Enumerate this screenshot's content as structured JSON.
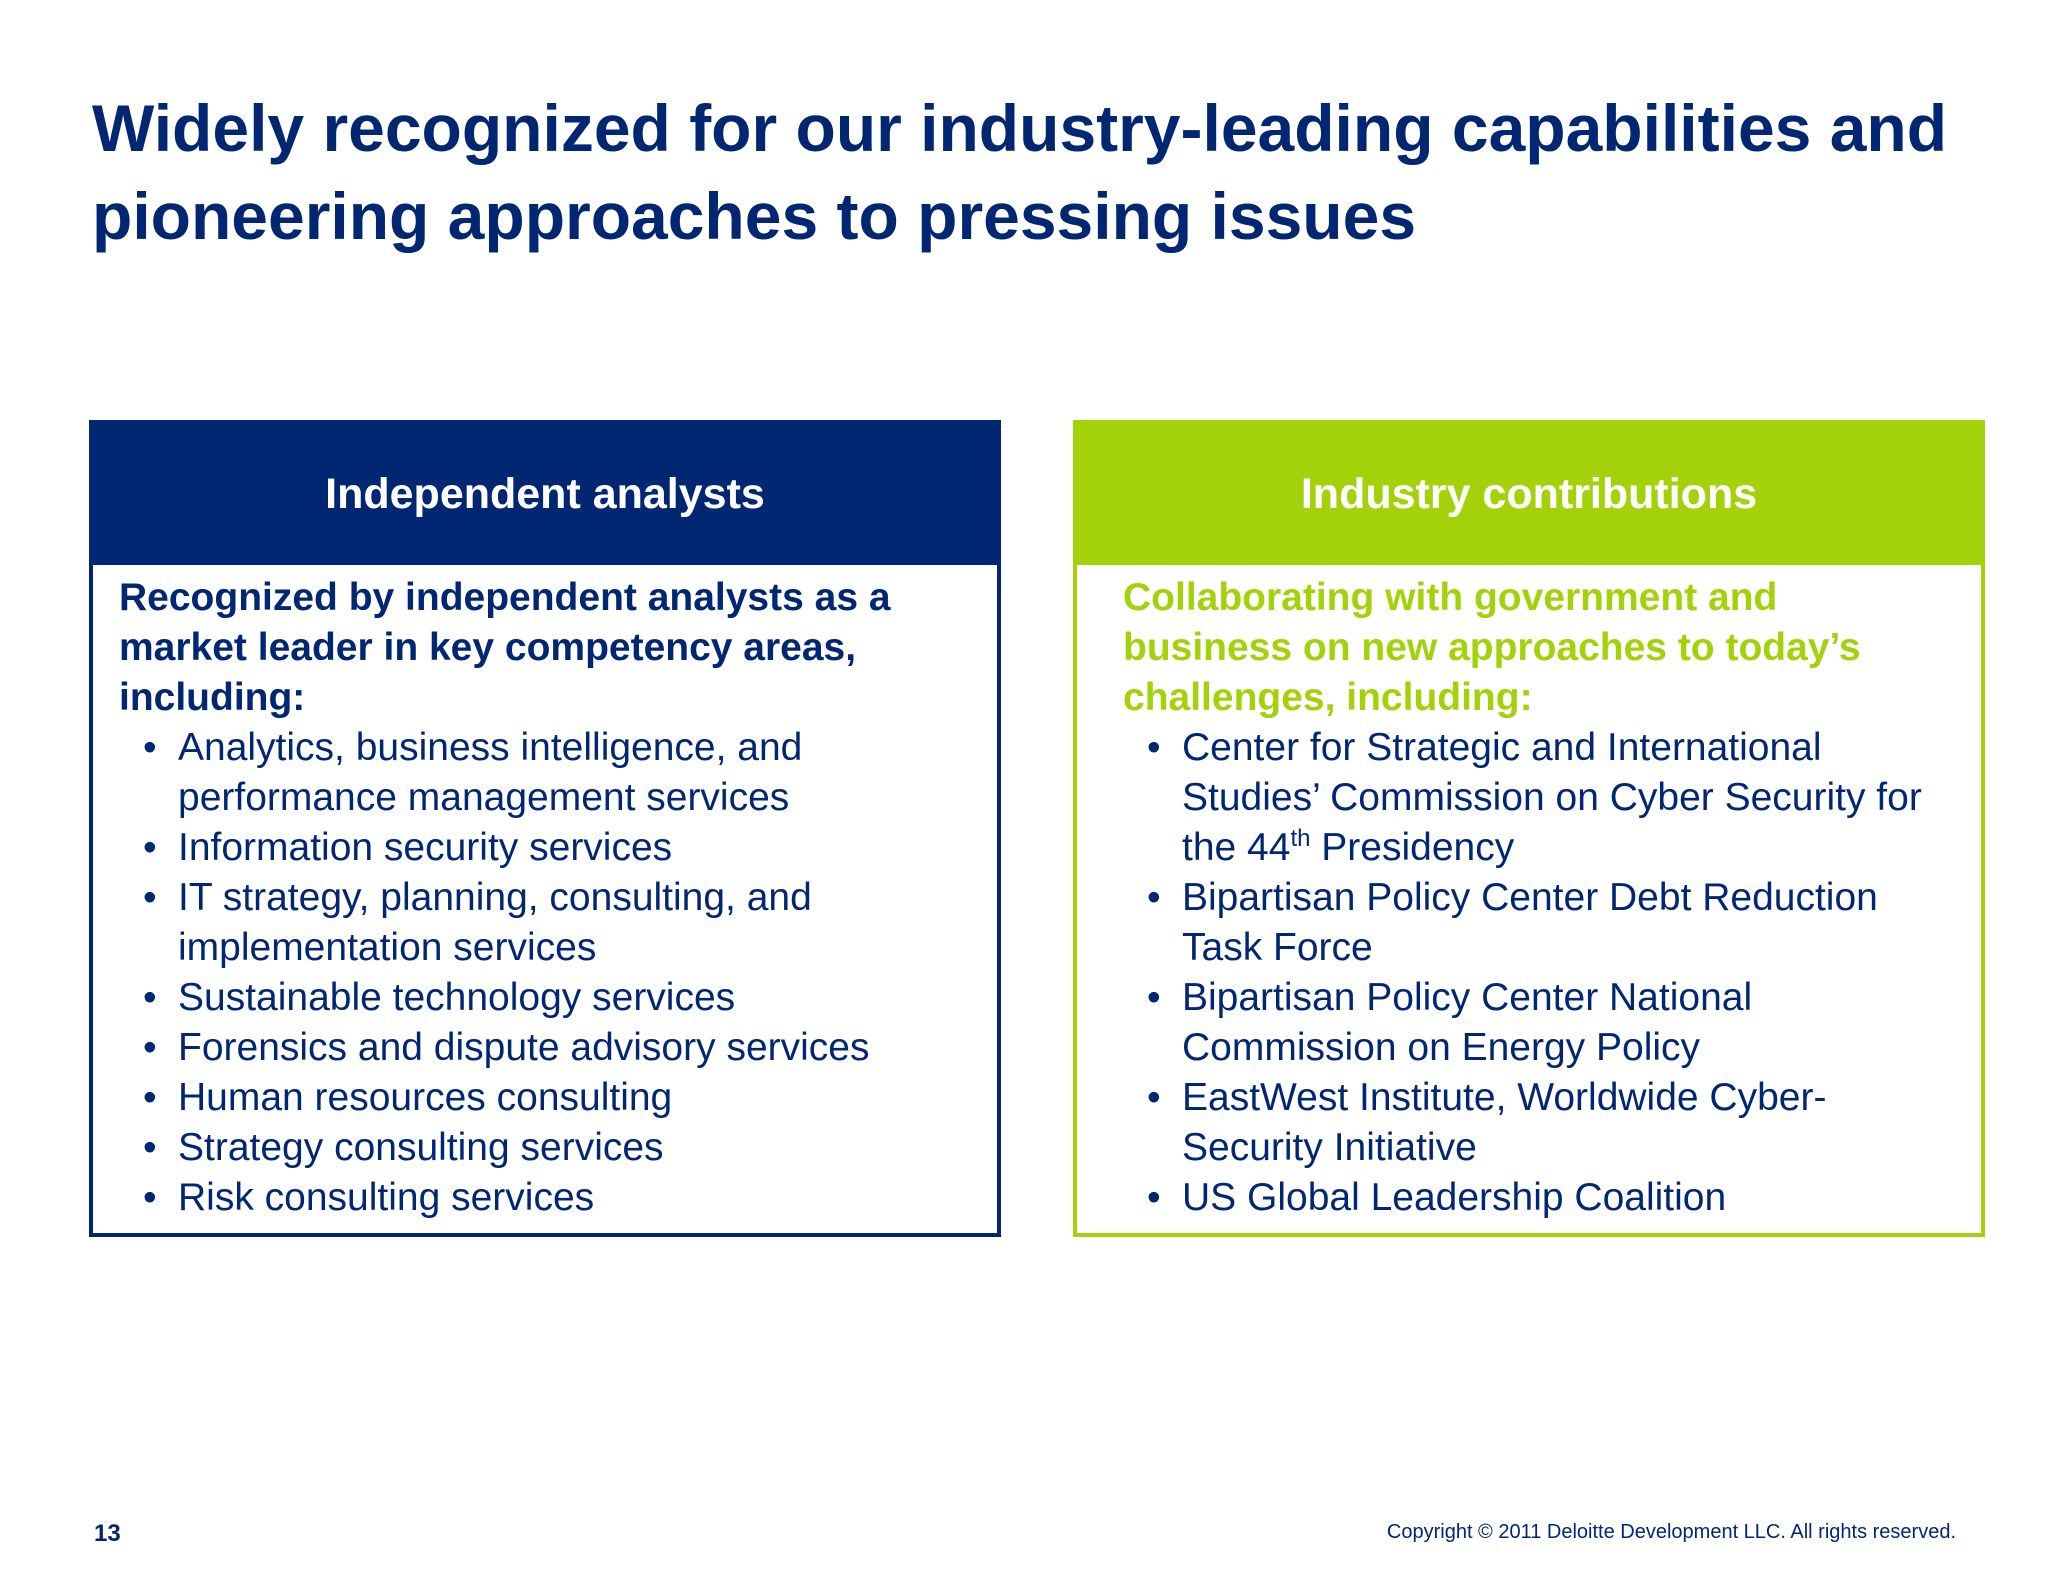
{
  "title": "Widely recognized for our industry-leading capabilities and pioneering approaches to pressing issues",
  "left_panel": {
    "header": "Independent analysts",
    "intro": "Recognized by independent analysts as a market leader in key competency areas, including:",
    "items": [
      "Analytics, business intelligence, and performance management services",
      "Information security services",
      "IT strategy, planning, consulting, and implementation services",
      "Sustainable technology services",
      "Forensics and dispute advisory services",
      "Human resources consulting",
      "Strategy consulting services",
      "Risk consulting services"
    ]
  },
  "right_panel": {
    "header": "Industry contributions",
    "intro": "Collaborating with government and business on new approaches to today’s challenges, including:",
    "items": [
      {
        "pre": "Center for Strategic and International Studies’ Commission on Cyber Security for the 44",
        "sup": "th",
        "post": " Presidency"
      },
      "Bipartisan Policy Center Debt Reduction Task Force",
      "Bipartisan Policy Center National Commission on Energy Policy",
      "EastWest Institute, Worldwide Cyber-Security Initiative",
      "US Global Leadership Coalition"
    ]
  },
  "bullet_glyph": "•",
  "footer": {
    "page_number": "13",
    "copyright": "Copyright © 2011 Deloitte Development LLC. All rights reserved."
  },
  "colors": {
    "primary_blue": "#012773",
    "accent_green": "#a4d20a"
  }
}
